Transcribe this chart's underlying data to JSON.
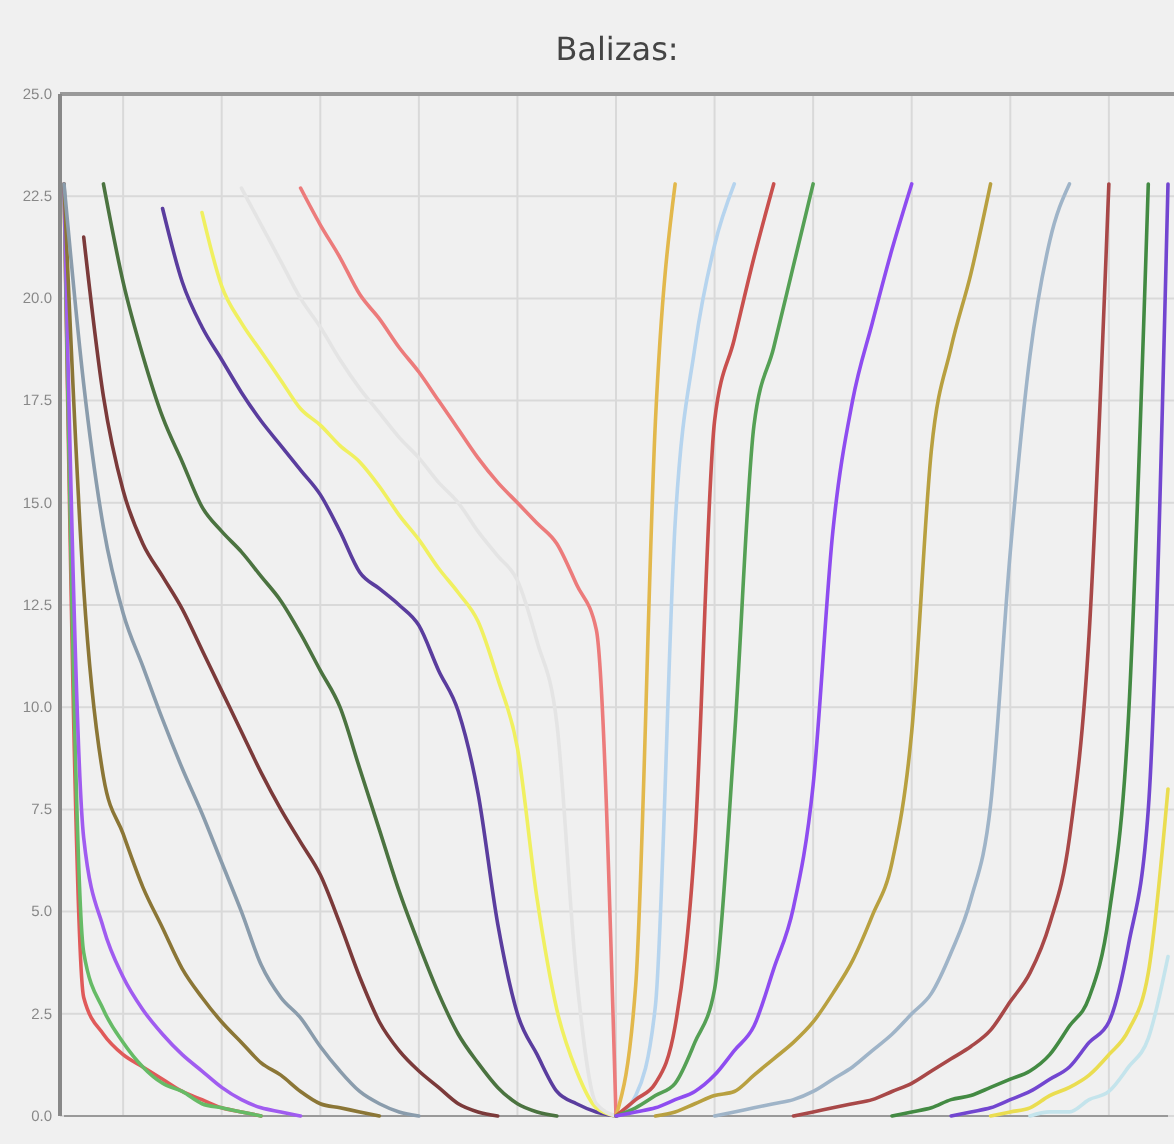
{
  "chart_data": {
    "type": "line",
    "title": "Balizas:",
    "categories": [
      null,
      null,
      null,
      null,
      null,
      null,
      null,
      null,
      null,
      null,
      null,
      null,
      null,
      null,
      null,
      null,
      null,
      null,
      null,
      null,
      null,
      null,
      null,
      null,
      null,
      null,
      null,
      null,
      null,
      null,
      null,
      null,
      null,
      null,
      null,
      null,
      null,
      null,
      null,
      null,
      null,
      null,
      null,
      null,
      null,
      null,
      null,
      null,
      null,
      null,
      null,
      null,
      null,
      null,
      null,
      null,
      null
    ],
    "ylim": [
      0,
      25
    ],
    "yticks": [
      {
        "value": 0,
        "label": "0.0"
      },
      {
        "value": 2.5,
        "label": "2.5"
      },
      {
        "value": 5,
        "label": "5.0"
      },
      {
        "value": 7.5,
        "label": "7.5"
      },
      {
        "value": 10,
        "label": "10.0"
      },
      {
        "value": 12.5,
        "label": "12.5"
      },
      {
        "value": 15,
        "label": "15.0"
      },
      {
        "value": 17.5,
        "label": "17.5"
      },
      {
        "value": 20,
        "label": "20.0"
      },
      {
        "value": 22.5,
        "label": "22.5"
      },
      {
        "value": 25,
        "label": "25.0"
      }
    ],
    "grid": true,
    "tick_labels": "y",
    "series": [
      {
        "color": "#e05a5a",
        "values": [
          22.8,
          2.9,
          2.0,
          1.5,
          1.2,
          0.9,
          0.6,
          0.4,
          0.2,
          0.1,
          0,
          null,
          null,
          null,
          null,
          null,
          null,
          null,
          null,
          null,
          null,
          null,
          null,
          null,
          null,
          null,
          null,
          null,
          null,
          null,
          null,
          null,
          null,
          null,
          null,
          null,
          null,
          null,
          null,
          null,
          null,
          null,
          null,
          null,
          null,
          null,
          null,
          null,
          null,
          null,
          null,
          null,
          null,
          null,
          null,
          null,
          null
        ]
      },
      {
        "color": "#66bb66",
        "values": [
          22.8,
          4.0,
          2.6,
          1.8,
          1.2,
          0.8,
          0.6,
          0.3,
          0.2,
          0.1,
          0,
          null,
          null,
          null,
          null,
          null,
          null,
          null,
          null,
          null,
          null,
          null,
          null,
          null,
          null,
          null,
          null,
          null,
          null,
          null,
          null,
          null,
          null,
          null,
          null,
          null,
          null,
          null,
          null,
          null,
          null,
          null,
          null,
          null,
          null,
          null,
          null,
          null,
          null,
          null,
          null,
          null,
          null,
          null,
          null,
          null,
          null
        ]
      },
      {
        "color": "#a05cf0",
        "values": [
          22.8,
          6.8,
          4.6,
          3.4,
          2.6,
          2.0,
          1.5,
          1.1,
          0.7,
          0.4,
          0.2,
          0.1,
          0,
          null,
          null,
          null,
          null,
          null,
          null,
          null,
          null,
          null,
          null,
          null,
          null,
          null,
          null,
          null,
          null,
          null,
          null,
          null,
          null,
          null,
          null,
          null,
          null,
          null,
          null,
          null,
          null,
          null,
          null,
          null,
          null,
          null,
          null,
          null,
          null,
          null,
          null,
          null,
          null,
          null,
          null,
          null,
          null
        ]
      },
      {
        "color": "#8b7636",
        "values": [
          22.8,
          12.9,
          8.3,
          6.9,
          5.6,
          4.6,
          3.6,
          2.9,
          2.3,
          1.8,
          1.3,
          1.0,
          0.6,
          0.3,
          0.2,
          0.1,
          0,
          null,
          null,
          null,
          null,
          null,
          null,
          null,
          null,
          null,
          null,
          null,
          null,
          null,
          null,
          null,
          null,
          null,
          null,
          null,
          null,
          null,
          null,
          null,
          null,
          null,
          null,
          null,
          null,
          null,
          null,
          null,
          null,
          null,
          null,
          null,
          null,
          null,
          null,
          null,
          null
        ]
      },
      {
        "color": "#8a9cac",
        "values": [
          22.8,
          17.9,
          14.4,
          12.3,
          11.0,
          9.7,
          8.5,
          7.4,
          6.2,
          5.0,
          3.7,
          2.9,
          2.4,
          1.7,
          1.1,
          0.6,
          0.3,
          0.1,
          0,
          null,
          null,
          null,
          null,
          null,
          null,
          null,
          null,
          null,
          null,
          null,
          null,
          null,
          null,
          null,
          null,
          null,
          null,
          null,
          null,
          null,
          null,
          null,
          null,
          null,
          null,
          null,
          null,
          null,
          null,
          null,
          null,
          null,
          null,
          null,
          null,
          null,
          null
        ]
      },
      {
        "color": "#7b3a3a",
        "values": [
          null,
          21.5,
          17.6,
          15.3,
          14.0,
          13.2,
          12.4,
          11.4,
          10.4,
          9.4,
          8.4,
          7.5,
          6.7,
          5.9,
          4.7,
          3.4,
          2.3,
          1.6,
          1.1,
          0.7,
          0.3,
          0.1,
          0,
          null,
          null,
          null,
          null,
          null,
          null,
          null,
          null,
          null,
          null,
          null,
          null,
          null,
          null,
          null,
          null,
          null,
          null,
          null,
          null,
          null,
          null,
          null,
          null,
          null,
          null,
          null,
          null,
          null,
          null,
          null,
          null,
          null,
          null
        ]
      },
      {
        "color": "#4b7340",
        "values": [
          null,
          null,
          22.8,
          20.4,
          18.6,
          17.1,
          16.0,
          14.9,
          14.3,
          13.8,
          13.2,
          12.6,
          11.8,
          10.9,
          10.0,
          8.5,
          7.0,
          5.5,
          4.2,
          3.0,
          2.0,
          1.3,
          0.7,
          0.3,
          0.1,
          0,
          null,
          null,
          null,
          null,
          null,
          null,
          null,
          null,
          null,
          null,
          null,
          null,
          null,
          null,
          null,
          null,
          null,
          null,
          null,
          null,
          null,
          null,
          null,
          null,
          null,
          null,
          null,
          null,
          null,
          null,
          null
        ]
      },
      {
        "color": "#5a3d9e",
        "values": [
          null,
          null,
          null,
          null,
          null,
          22.2,
          20.4,
          19.3,
          18.5,
          17.7,
          17.0,
          16.4,
          15.8,
          15.2,
          14.3,
          13.3,
          12.9,
          12.5,
          12.0,
          10.9,
          9.9,
          7.9,
          4.7,
          2.5,
          1.5,
          0.6,
          0.3,
          0.1,
          0,
          null,
          null,
          null,
          null,
          null,
          null,
          null,
          null,
          null,
          null,
          null,
          null,
          null,
          null,
          null,
          null,
          null,
          null,
          null,
          null,
          null,
          null,
          null,
          null,
          null,
          null,
          null,
          null
        ]
      },
      {
        "color": "#f0f060",
        "values": [
          null,
          null,
          null,
          null,
          null,
          null,
          null,
          22.1,
          20.3,
          19.4,
          18.7,
          18.0,
          17.3,
          16.9,
          16.4,
          16.0,
          15.4,
          14.7,
          14.1,
          13.4,
          12.8,
          12.1,
          10.7,
          9.0,
          5.3,
          2.6,
          1.1,
          0.2,
          0,
          null,
          null,
          null,
          null,
          null,
          null,
          null,
          null,
          null,
          null,
          null,
          null,
          null,
          null,
          null,
          null,
          null,
          null,
          null,
          null,
          null,
          null,
          null,
          null,
          null,
          null,
          null,
          null
        ]
      },
      {
        "color": "#e4e4e4",
        "values": [
          null,
          null,
          null,
          null,
          null,
          null,
          null,
          null,
          null,
          22.7,
          21.8,
          20.9,
          20.0,
          19.3,
          18.5,
          17.8,
          17.2,
          16.6,
          16.1,
          15.5,
          15.0,
          14.3,
          13.7,
          13.1,
          11.6,
          9.6,
          3.4,
          0.3,
          0,
          null,
          null,
          null,
          null,
          null,
          null,
          null,
          null,
          null,
          null,
          null,
          null,
          null,
          null,
          null,
          null,
          null,
          null,
          null,
          null,
          null,
          null,
          null,
          null,
          null,
          null,
          null,
          null
        ]
      },
      {
        "color": "#ec7b7b",
        "values": [
          null,
          null,
          null,
          null,
          null,
          null,
          null,
          null,
          null,
          null,
          null,
          null,
          22.7,
          21.8,
          21.0,
          20.1,
          19.5,
          18.8,
          18.2,
          17.5,
          16.8,
          16.1,
          15.5,
          15.0,
          14.5,
          14.0,
          13.0,
          11.9,
          0,
          null,
          null,
          null,
          null,
          null,
          null,
          null,
          null,
          null,
          null,
          null,
          null,
          null,
          null,
          null,
          null,
          null,
          null,
          null,
          null,
          null,
          null,
          null,
          null,
          null,
          null,
          null,
          null
        ]
      },
      {
        "color": "#e2b84c",
        "values": [
          null,
          null,
          null,
          null,
          null,
          null,
          null,
          null,
          null,
          null,
          null,
          null,
          null,
          null,
          null,
          null,
          null,
          null,
          null,
          null,
          null,
          null,
          null,
          null,
          null,
          null,
          null,
          null,
          0,
          3.2,
          17.0,
          22.8,
          null,
          null,
          null,
          null,
          null,
          null,
          null,
          null,
          null,
          null,
          null,
          null,
          null,
          null,
          null,
          null,
          null,
          null,
          null,
          null,
          null,
          null,
          null,
          null,
          null
        ]
      },
      {
        "color": "#b6d4ee",
        "values": [
          null,
          null,
          null,
          null,
          null,
          null,
          null,
          null,
          null,
          null,
          null,
          null,
          null,
          null,
          null,
          null,
          null,
          null,
          null,
          null,
          null,
          null,
          null,
          null,
          null,
          null,
          null,
          null,
          0,
          0.5,
          2.7,
          14.5,
          18.8,
          21.3,
          22.8,
          null,
          null,
          null,
          null,
          null,
          null,
          null,
          null,
          null,
          null,
          null,
          null,
          null,
          null,
          null,
          null,
          null,
          null,
          null,
          null,
          null,
          null
        ]
      },
      {
        "color": "#c8504e",
        "values": [
          null,
          null,
          null,
          null,
          null,
          null,
          null,
          null,
          null,
          null,
          null,
          null,
          null,
          null,
          null,
          null,
          null,
          null,
          null,
          null,
          null,
          null,
          null,
          null,
          null,
          null,
          null,
          null,
          0,
          0.4,
          0.8,
          2.2,
          6.7,
          17.0,
          19.0,
          21.0,
          22.8,
          null,
          null,
          null,
          null,
          null,
          null,
          null,
          null,
          null,
          null,
          null,
          null,
          null,
          null,
          null,
          null,
          null,
          null,
          null,
          null
        ]
      },
      {
        "color": "#55a055",
        "values": [
          null,
          null,
          null,
          null,
          null,
          null,
          null,
          null,
          null,
          null,
          null,
          null,
          null,
          null,
          null,
          null,
          null,
          null,
          null,
          null,
          null,
          null,
          null,
          null,
          null,
          null,
          null,
          null,
          0,
          0.2,
          0.5,
          0.8,
          1.8,
          3.1,
          9.2,
          16.9,
          18.8,
          20.8,
          22.8,
          null,
          null,
          null,
          null,
          null,
          null,
          null,
          null,
          null,
          null,
          null,
          null,
          null,
          null,
          null,
          null,
          null,
          null
        ]
      },
      {
        "color": "#8e4cf0",
        "values": [
          null,
          null,
          null,
          null,
          null,
          null,
          null,
          null,
          null,
          null,
          null,
          null,
          null,
          null,
          null,
          null,
          null,
          null,
          null,
          null,
          null,
          null,
          null,
          null,
          null,
          null,
          null,
          null,
          0,
          0.1,
          0.2,
          0.4,
          0.6,
          1.0,
          1.6,
          2.2,
          3.6,
          5.1,
          8.1,
          14.3,
          17.5,
          19.4,
          21.2,
          22.8,
          null,
          null,
          null,
          null,
          null,
          null,
          null,
          null,
          null,
          null,
          null,
          null,
          null
        ]
      },
      {
        "color": "#b8a040",
        "values": [
          null,
          null,
          null,
          null,
          null,
          null,
          null,
          null,
          null,
          null,
          null,
          null,
          null,
          null,
          null,
          null,
          null,
          null,
          null,
          null,
          null,
          null,
          null,
          null,
          null,
          null,
          null,
          null,
          null,
          null,
          0,
          0.1,
          0.3,
          0.5,
          0.6,
          1.0,
          1.4,
          1.8,
          2.3,
          3.0,
          3.8,
          4.9,
          6.2,
          9.4,
          16.3,
          18.8,
          20.6,
          22.8,
          null,
          null,
          null,
          null,
          null,
          null,
          null,
          null,
          null
        ]
      },
      {
        "color": "#9fb4c8",
        "values": [
          null,
          null,
          null,
          null,
          null,
          null,
          null,
          null,
          null,
          null,
          null,
          null,
          null,
          null,
          null,
          null,
          null,
          null,
          null,
          null,
          null,
          null,
          null,
          null,
          null,
          null,
          null,
          null,
          null,
          null,
          null,
          null,
          null,
          0,
          0.1,
          0.2,
          0.3,
          0.4,
          0.6,
          0.9,
          1.2,
          1.6,
          2.0,
          2.5,
          3.0,
          4.0,
          5.3,
          7.6,
          13.8,
          18.6,
          21.4,
          22.8,
          null,
          null,
          null,
          null,
          null
        ]
      },
      {
        "color": "#a84848",
        "values": [
          null,
          null,
          null,
          null,
          null,
          null,
          null,
          null,
          null,
          null,
          null,
          null,
          null,
          null,
          null,
          null,
          null,
          null,
          null,
          null,
          null,
          null,
          null,
          null,
          null,
          null,
          null,
          null,
          null,
          null,
          null,
          null,
          null,
          null,
          null,
          null,
          null,
          0,
          0.1,
          0.2,
          0.3,
          0.4,
          0.6,
          0.8,
          1.1,
          1.4,
          1.7,
          2.1,
          2.8,
          3.5,
          4.7,
          6.8,
          11.8,
          22.8,
          null,
          null,
          null
        ]
      },
      {
        "color": "#438a43",
        "values": [
          null,
          null,
          null,
          null,
          null,
          null,
          null,
          null,
          null,
          null,
          null,
          null,
          null,
          null,
          null,
          null,
          null,
          null,
          null,
          null,
          null,
          null,
          null,
          null,
          null,
          null,
          null,
          null,
          null,
          null,
          null,
          null,
          null,
          null,
          null,
          null,
          null,
          null,
          null,
          null,
          null,
          null,
          0,
          0.1,
          0.2,
          0.4,
          0.5,
          0.7,
          0.9,
          1.1,
          1.5,
          2.2,
          2.9,
          4.9,
          9.8,
          22.8,
          null
        ]
      },
      {
        "color": "#7246d0",
        "values": [
          null,
          null,
          null,
          null,
          null,
          null,
          null,
          null,
          null,
          null,
          null,
          null,
          null,
          null,
          null,
          null,
          null,
          null,
          null,
          null,
          null,
          null,
          null,
          null,
          null,
          null,
          null,
          null,
          null,
          null,
          null,
          null,
          null,
          null,
          null,
          null,
          null,
          null,
          null,
          null,
          null,
          null,
          null,
          null,
          null,
          0,
          0.1,
          0.2,
          0.4,
          0.6,
          0.9,
          1.2,
          1.8,
          2.3,
          4.2,
          7.5,
          22.8
        ]
      },
      {
        "color": "#eadd50",
        "values": [
          null,
          null,
          null,
          null,
          null,
          null,
          null,
          null,
          null,
          null,
          null,
          null,
          null,
          null,
          null,
          null,
          null,
          null,
          null,
          null,
          null,
          null,
          null,
          null,
          null,
          null,
          null,
          null,
          null,
          null,
          null,
          null,
          null,
          null,
          null,
          null,
          null,
          null,
          null,
          null,
          null,
          null,
          null,
          null,
          null,
          null,
          null,
          0,
          0.1,
          0.2,
          0.5,
          0.7,
          1.0,
          1.5,
          2.1,
          3.5,
          8.0
        ]
      },
      {
        "color": "#c4e4ec",
        "values": [
          null,
          null,
          null,
          null,
          null,
          null,
          null,
          null,
          null,
          null,
          null,
          null,
          null,
          null,
          null,
          null,
          null,
          null,
          null,
          null,
          null,
          null,
          null,
          null,
          null,
          null,
          null,
          null,
          null,
          null,
          null,
          null,
          null,
          null,
          null,
          null,
          null,
          null,
          null,
          null,
          null,
          null,
          null,
          null,
          null,
          null,
          null,
          null,
          null,
          0,
          0.1,
          0.1,
          0.4,
          0.6,
          1.2,
          1.9,
          3.9
        ]
      }
    ]
  }
}
